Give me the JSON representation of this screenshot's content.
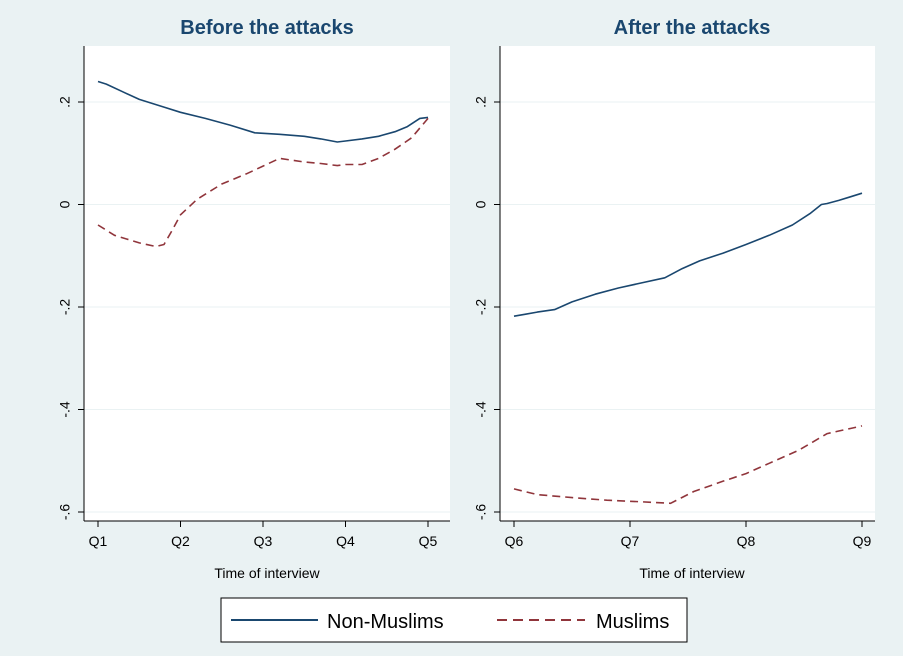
{
  "colors": {
    "background": "#EAF2F3",
    "plot_background": "#FFFFFF",
    "grid": "#EAF2F3",
    "title": "#1A476F",
    "non_muslims": "#1A476F",
    "muslims": "#90353B",
    "axis": "#000000"
  },
  "legend": {
    "placement": "bottom-center",
    "items": [
      {
        "label": "Non-Muslims",
        "style": "solid",
        "color": "#1A476F"
      },
      {
        "label": "Muslims",
        "style": "dashed",
        "color": "#90353B"
      }
    ]
  },
  "chart_data": [
    {
      "type": "line",
      "title": "Before the attacks",
      "xlabel": "Time of interview",
      "ylabel": "",
      "x_ticks": [
        "Q1",
        "Q2",
        "Q3",
        "Q4",
        "Q5"
      ],
      "xlim": [
        1,
        5
      ],
      "ylim": [
        -0.6,
        0.2
      ],
      "y_ticks": [
        ".2",
        "0",
        "-.2",
        "-.4",
        "-.6"
      ],
      "grid": true,
      "series": [
        {
          "name": "Non-Muslims",
          "x": [
            1.0,
            1.1,
            1.3,
            1.5,
            1.8,
            2.0,
            2.3,
            2.6,
            2.9,
            3.2,
            3.5,
            3.7,
            3.9,
            4.0,
            4.2,
            4.4,
            4.6,
            4.75,
            4.9,
            5.0
          ],
          "y": [
            0.24,
            0.235,
            0.22,
            0.205,
            0.19,
            0.18,
            0.168,
            0.155,
            0.14,
            0.137,
            0.133,
            0.128,
            0.122,
            0.124,
            0.128,
            0.133,
            0.142,
            0.152,
            0.168,
            0.17
          ]
        },
        {
          "name": "Muslims",
          "x": [
            1.0,
            1.2,
            1.5,
            1.7,
            1.8,
            1.9,
            2.0,
            2.2,
            2.5,
            2.8,
            3.0,
            3.2,
            3.5,
            3.7,
            3.9,
            4.0,
            4.2,
            4.4,
            4.6,
            4.8,
            5.0
          ],
          "y": [
            -0.04,
            -0.06,
            -0.075,
            -0.082,
            -0.078,
            -0.05,
            -0.02,
            0.01,
            0.04,
            0.06,
            0.075,
            0.09,
            0.083,
            0.08,
            0.076,
            0.078,
            0.078,
            0.09,
            0.108,
            0.13,
            0.168
          ]
        }
      ]
    },
    {
      "type": "line",
      "title": "After the attacks",
      "xlabel": "Time of interview",
      "ylabel": "",
      "x_ticks": [
        "Q6",
        "Q7",
        "Q8",
        "Q9"
      ],
      "xlim": [
        6,
        9
      ],
      "ylim": [
        -0.6,
        0.2
      ],
      "y_ticks": [
        ".2",
        "0",
        "-.2",
        "-.4",
        "-.6"
      ],
      "grid": true,
      "series": [
        {
          "name": "Non-Muslims",
          "x": [
            6.0,
            6.1,
            6.2,
            6.35,
            6.5,
            6.7,
            6.9,
            7.1,
            7.3,
            7.45,
            7.6,
            7.8,
            8.0,
            8.2,
            8.4,
            8.55,
            8.65,
            8.7,
            8.8,
            8.9,
            9.0
          ],
          "y": [
            -0.218,
            -0.214,
            -0.21,
            -0.205,
            -0.19,
            -0.175,
            -0.163,
            -0.153,
            -0.143,
            -0.125,
            -0.11,
            -0.095,
            -0.078,
            -0.06,
            -0.04,
            -0.018,
            0.0,
            0.002,
            0.008,
            0.015,
            0.022
          ]
        },
        {
          "name": "Muslims",
          "x": [
            6.0,
            6.2,
            6.5,
            6.8,
            7.1,
            7.35,
            7.55,
            7.8,
            8.0,
            8.2,
            8.45,
            8.7,
            8.8,
            8.9,
            9.0
          ],
          "y": [
            -0.555,
            -0.566,
            -0.572,
            -0.577,
            -0.58,
            -0.583,
            -0.56,
            -0.54,
            -0.525,
            -0.505,
            -0.48,
            -0.447,
            -0.442,
            -0.437,
            -0.432
          ]
        }
      ]
    }
  ]
}
